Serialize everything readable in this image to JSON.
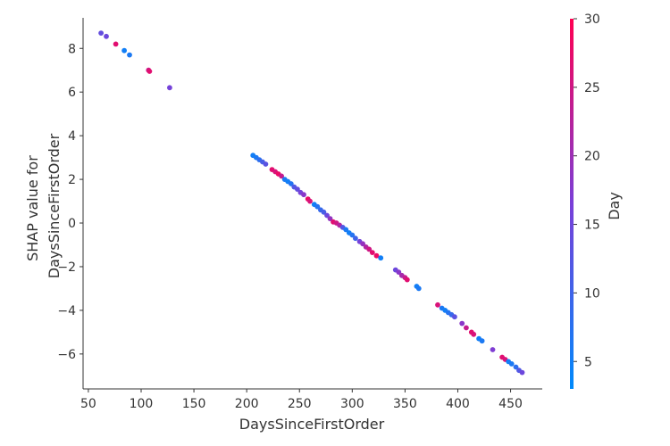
{
  "chart_data": {
    "type": "scatter",
    "xlabel": "DaysSinceFirstOrder",
    "ylabel_lines": [
      "SHAP value for",
      "DaysSinceFirstOrder"
    ],
    "xlim": [
      45,
      480
    ],
    "ylim": [
      -7.6,
      9.4
    ],
    "xticks": [
      50,
      100,
      150,
      200,
      250,
      300,
      350,
      400,
      450
    ],
    "yticks": [
      -6,
      -4,
      -2,
      0,
      2,
      4,
      6,
      8
    ],
    "colorbar": {
      "label": "Day",
      "range": [
        3,
        30
      ],
      "ticks": [
        5,
        10,
        15,
        20,
        25,
        30
      ],
      "colors": [
        "#008afb",
        "#7a3fd8",
        "#ff0052"
      ]
    },
    "grid": false,
    "legend": "none",
    "points": [
      {
        "x": 62,
        "y": 8.7,
        "c": 14
      },
      {
        "x": 67,
        "y": 8.55,
        "c": 15
      },
      {
        "x": 76,
        "y": 8.2,
        "c": 27
      },
      {
        "x": 84,
        "y": 7.9,
        "c": 5
      },
      {
        "x": 89,
        "y": 7.7,
        "c": 6
      },
      {
        "x": 107,
        "y": 7.0,
        "c": 25
      },
      {
        "x": 108,
        "y": 6.95,
        "c": 27
      },
      {
        "x": 127,
        "y": 6.2,
        "c": 16
      },
      {
        "x": 206,
        "y": 3.1,
        "c": 5
      },
      {
        "x": 209,
        "y": 3.0,
        "c": 6
      },
      {
        "x": 212,
        "y": 2.9,
        "c": 8
      },
      {
        "x": 215,
        "y": 2.8,
        "c": 11
      },
      {
        "x": 218,
        "y": 2.7,
        "c": 13
      },
      {
        "x": 224,
        "y": 2.45,
        "c": 27
      },
      {
        "x": 227,
        "y": 2.35,
        "c": 26
      },
      {
        "x": 230,
        "y": 2.25,
        "c": 28
      },
      {
        "x": 233,
        "y": 2.15,
        "c": 24
      },
      {
        "x": 236,
        "y": 2.0,
        "c": 6
      },
      {
        "x": 239,
        "y": 1.9,
        "c": 5
      },
      {
        "x": 242,
        "y": 1.8,
        "c": 7
      },
      {
        "x": 245,
        "y": 1.65,
        "c": 12
      },
      {
        "x": 248,
        "y": 1.55,
        "c": 14
      },
      {
        "x": 251,
        "y": 1.4,
        "c": 16
      },
      {
        "x": 254,
        "y": 1.3,
        "c": 18
      },
      {
        "x": 258,
        "y": 1.1,
        "c": 28
      },
      {
        "x": 260,
        "y": 1.0,
        "c": 26
      },
      {
        "x": 264,
        "y": 0.85,
        "c": 5
      },
      {
        "x": 267,
        "y": 0.75,
        "c": 7
      },
      {
        "x": 270,
        "y": 0.6,
        "c": 9
      },
      {
        "x": 273,
        "y": 0.5,
        "c": 11
      },
      {
        "x": 276,
        "y": 0.35,
        "c": 15
      },
      {
        "x": 279,
        "y": 0.2,
        "c": 19
      },
      {
        "x": 282,
        "y": 0.05,
        "c": 27
      },
      {
        "x": 285,
        "y": 0.0,
        "c": 25
      },
      {
        "x": 288,
        "y": -0.1,
        "c": 22
      },
      {
        "x": 291,
        "y": -0.2,
        "c": 12
      },
      {
        "x": 294,
        "y": -0.3,
        "c": 6
      },
      {
        "x": 297,
        "y": -0.45,
        "c": 5
      },
      {
        "x": 300,
        "y": -0.55,
        "c": 7
      },
      {
        "x": 303,
        "y": -0.7,
        "c": 10
      },
      {
        "x": 307,
        "y": -0.85,
        "c": 16
      },
      {
        "x": 310,
        "y": -0.95,
        "c": 19
      },
      {
        "x": 313,
        "y": -1.1,
        "c": 22
      },
      {
        "x": 316,
        "y": -1.2,
        "c": 25
      },
      {
        "x": 319,
        "y": -1.35,
        "c": 27
      },
      {
        "x": 323,
        "y": -1.5,
        "c": 28
      },
      {
        "x": 327,
        "y": -1.6,
        "c": 5
      },
      {
        "x": 341,
        "y": -2.15,
        "c": 15
      },
      {
        "x": 344,
        "y": -2.25,
        "c": 18
      },
      {
        "x": 347,
        "y": -2.4,
        "c": 21
      },
      {
        "x": 350,
        "y": -2.5,
        "c": 24
      },
      {
        "x": 352,
        "y": -2.6,
        "c": 27
      },
      {
        "x": 361,
        "y": -2.9,
        "c": 5
      },
      {
        "x": 363,
        "y": -3.0,
        "c": 6
      },
      {
        "x": 381,
        "y": -3.75,
        "c": 26
      },
      {
        "x": 385,
        "y": -3.9,
        "c": 6
      },
      {
        "x": 388,
        "y": -4.0,
        "c": 5
      },
      {
        "x": 391,
        "y": -4.1,
        "c": 7
      },
      {
        "x": 394,
        "y": -4.2,
        "c": 9
      },
      {
        "x": 397,
        "y": -4.3,
        "c": 13
      },
      {
        "x": 404,
        "y": -4.6,
        "c": 18
      },
      {
        "x": 408,
        "y": -4.8,
        "c": 24
      },
      {
        "x": 413,
        "y": -5.0,
        "c": 27
      },
      {
        "x": 415,
        "y": -5.1,
        "c": 26
      },
      {
        "x": 420,
        "y": -5.3,
        "c": 5
      },
      {
        "x": 423,
        "y": -5.4,
        "c": 6
      },
      {
        "x": 433,
        "y": -5.8,
        "c": 17
      },
      {
        "x": 442,
        "y": -6.15,
        "c": 27
      },
      {
        "x": 445,
        "y": -6.25,
        "c": 26
      },
      {
        "x": 448,
        "y": -6.35,
        "c": 5
      },
      {
        "x": 451,
        "y": -6.45,
        "c": 6
      },
      {
        "x": 455,
        "y": -6.6,
        "c": 8
      },
      {
        "x": 458,
        "y": -6.75,
        "c": 12
      },
      {
        "x": 461,
        "y": -6.85,
        "c": 15
      }
    ]
  }
}
